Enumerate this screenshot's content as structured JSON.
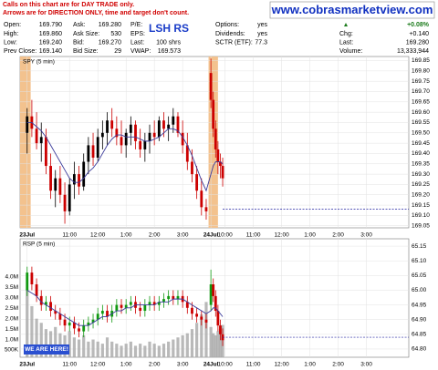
{
  "header": {
    "notes": [
      "Calls on this chart are for DAY TRADE only.",
      "Arrows are for DIRECTION ONLY, time and target don't count."
    ],
    "site": "www.cobrasmarketview.com",
    "symbol": "LSH RS",
    "quote": [
      [
        {
          "label": "Open:",
          "value": "169.790"
        },
        {
          "label": "High:",
          "value": "169.860"
        },
        {
          "label": "Low:",
          "value": "169.240"
        },
        {
          "label": "Prev Close:",
          "value": "169.140"
        }
      ],
      [
        {
          "label": "Ask:",
          "value": "169.280"
        },
        {
          "label": "Ask Size:",
          "value": "530"
        },
        {
          "label": "Bid:",
          "value": "169.270"
        },
        {
          "label": "Bid Size:",
          "value": "29"
        }
      ],
      [
        {
          "label": "P/E:"
        },
        {
          "label": "EPS:"
        },
        {
          "label": "Last:",
          "value": "100 shrs"
        },
        {
          "label": "VWAP:",
          "value": "169.573"
        }
      ],
      [
        {
          "label": "Options:",
          "value": "yes"
        },
        {
          "label": "Dividends:",
          "value": "yes"
        },
        {
          "label": "SCTR (ETF):",
          "value": "77.3"
        }
      ],
      [
        {
          "value": "+0.08%"
        },
        {
          "label": "Chg:",
          "value": "+0.140"
        },
        {
          "label": "Last:",
          "value": "169.280"
        },
        {
          "label": "Volume:",
          "value": "13,333,944"
        }
      ]
    ]
  },
  "chart_data": [
    {
      "type": "candlestick",
      "title": "SPY (5 min)",
      "up_color": "#000000",
      "down_color": "#cc0000",
      "x": [
        0,
        2,
        4,
        6,
        8,
        10,
        12,
        14,
        16,
        18,
        20,
        22,
        24,
        26,
        28,
        30,
        32,
        34,
        36,
        38,
        40,
        42,
        44,
        46,
        48,
        50,
        52,
        54,
        56,
        58,
        60,
        62,
        64,
        66,
        68,
        70,
        72,
        74,
        76,
        78,
        79,
        80,
        81,
        82,
        83
      ],
      "open": [
        169.5,
        169.58,
        169.52,
        169.45,
        169.48,
        169.34,
        169.22,
        169.28,
        169.2,
        169.12,
        169.25,
        169.3,
        169.24,
        169.36,
        169.44,
        169.38,
        169.48,
        169.5,
        169.56,
        169.52,
        169.48,
        169.44,
        169.5,
        169.54,
        169.46,
        169.42,
        169.46,
        169.5,
        169.48,
        169.56,
        169.52,
        169.54,
        169.58,
        169.5,
        169.44,
        169.36,
        169.3,
        169.22,
        169.14,
        169.79,
        169.66,
        169.52,
        169.42,
        169.36,
        169.34
      ],
      "high": [
        169.62,
        169.66,
        169.6,
        169.55,
        169.52,
        169.4,
        169.32,
        169.34,
        169.26,
        169.28,
        169.36,
        169.34,
        169.4,
        169.48,
        169.5,
        169.52,
        169.56,
        169.6,
        169.62,
        169.58,
        169.56,
        169.52,
        169.58,
        169.56,
        169.52,
        169.5,
        169.54,
        169.56,
        169.58,
        169.6,
        169.58,
        169.62,
        169.6,
        169.56,
        169.5,
        169.42,
        169.34,
        169.28,
        169.18,
        169.86,
        169.7,
        169.56,
        169.46,
        169.4,
        169.38
      ],
      "low": [
        169.4,
        169.48,
        169.42,
        169.36,
        169.3,
        169.18,
        169.14,
        169.16,
        169.06,
        169.1,
        169.18,
        169.2,
        169.22,
        169.3,
        169.34,
        169.36,
        169.42,
        169.44,
        169.48,
        169.44,
        169.4,
        169.38,
        169.44,
        169.42,
        169.38,
        169.36,
        169.4,
        169.44,
        169.46,
        169.48,
        169.46,
        169.5,
        169.48,
        169.4,
        169.32,
        169.26,
        169.18,
        169.1,
        169.08,
        169.62,
        169.48,
        169.38,
        169.3,
        169.28,
        169.24
      ],
      "close": [
        169.58,
        169.52,
        169.45,
        169.48,
        169.34,
        169.22,
        169.28,
        169.2,
        169.12,
        169.25,
        169.3,
        169.24,
        169.36,
        169.44,
        169.38,
        169.48,
        169.5,
        169.56,
        169.52,
        169.48,
        169.44,
        169.5,
        169.54,
        169.46,
        169.42,
        169.46,
        169.5,
        169.48,
        169.56,
        169.52,
        169.54,
        169.58,
        169.5,
        169.44,
        169.36,
        169.3,
        169.22,
        169.14,
        169.12,
        169.66,
        169.52,
        169.42,
        169.36,
        169.34,
        169.28
      ],
      "ma": {
        "color": "#3a3a9a",
        "values": [
          169.55,
          169.55,
          169.53,
          169.51,
          169.48,
          169.44,
          169.4,
          169.36,
          169.32,
          169.28,
          169.26,
          169.26,
          169.28,
          169.31,
          169.33,
          169.36,
          169.4,
          169.44,
          169.47,
          169.49,
          169.49,
          169.48,
          169.48,
          169.48,
          169.47,
          169.46,
          169.46,
          169.47,
          169.48,
          169.5,
          169.52,
          169.52,
          169.51,
          169.48,
          169.44,
          169.39,
          169.33,
          169.27,
          169.22,
          169.3,
          169.34,
          169.36,
          169.36,
          169.36,
          169.35
        ]
      },
      "price_line": 169.13,
      "price_line_color": "#2020a0",
      "highlights": [
        [
          -3,
          1.5
        ],
        [
          77,
          81
        ]
      ],
      "highlight_color": "#f3c28e",
      "xlim": [
        -3,
        162
      ],
      "ylim": [
        169.04,
        169.87
      ],
      "xticks": [
        {
          "value": 0,
          "label": "23Jul"
        },
        {
          "value": 18,
          "label": "11:00"
        },
        {
          "value": 30,
          "label": "12:00"
        },
        {
          "value": 42,
          "label": "1:00"
        },
        {
          "value": 54,
          "label": "2:00"
        },
        {
          "value": 66,
          "label": "3:00"
        },
        {
          "value": 78,
          "label": "24Jul"
        },
        {
          "value": 84,
          "label": "10:00"
        },
        {
          "value": 96,
          "label": "11:00"
        },
        {
          "value": 108,
          "label": "12:00"
        },
        {
          "value": 120,
          "label": "1:00"
        },
        {
          "value": 132,
          "label": "2:00"
        },
        {
          "value": 144,
          "label": "3:00"
        }
      ],
      "yticks": [
        169.05,
        {
          "value": 169.1,
          "label": "169.10"
        },
        169.15,
        {
          "value": 169.2,
          "label": "169.20"
        },
        169.25,
        {
          "value": 169.3,
          "label": "169.30"
        },
        169.35,
        {
          "value": 169.4,
          "label": "169.40"
        },
        169.45,
        {
          "value": 169.5,
          "label": "169.50"
        },
        169.55,
        {
          "value": 169.6,
          "label": "169.60"
        },
        169.65,
        {
          "value": 169.7,
          "label": "169.70"
        },
        169.75,
        {
          "value": 169.8,
          "label": "169.80"
        },
        169.85
      ],
      "grid": true
    },
    {
      "type": "candlestick",
      "title": "RSP (5 min)",
      "up_color": "#119911",
      "down_color": "#cc0000",
      "x": [
        0,
        2,
        4,
        6,
        8,
        10,
        12,
        14,
        16,
        18,
        20,
        22,
        24,
        26,
        28,
        30,
        32,
        34,
        36,
        38,
        40,
        42,
        44,
        46,
        48,
        50,
        52,
        54,
        56,
        58,
        60,
        62,
        64,
        66,
        68,
        70,
        72,
        74,
        76,
        78,
        79,
        80,
        81,
        82,
        83
      ],
      "open": [
        65.0,
        65.06,
        65.02,
        64.98,
        64.95,
        64.96,
        64.93,
        64.92,
        64.9,
        64.88,
        64.89,
        64.87,
        64.86,
        64.88,
        64.89,
        64.9,
        64.92,
        64.93,
        64.91,
        64.93,
        64.95,
        64.94,
        64.95,
        64.96,
        64.94,
        64.93,
        64.95,
        64.96,
        64.95,
        64.96,
        64.97,
        64.98,
        64.97,
        64.98,
        64.96,
        64.94,
        64.92,
        64.91,
        64.9,
        64.95,
        65.02,
        64.98,
        64.93,
        64.88,
        64.85
      ],
      "high": [
        65.08,
        65.08,
        65.04,
        65.0,
        64.98,
        64.98,
        64.95,
        64.94,
        64.92,
        64.91,
        64.91,
        64.89,
        64.9,
        64.91,
        64.92,
        64.94,
        64.95,
        64.95,
        64.95,
        64.97,
        64.97,
        64.97,
        64.98,
        64.98,
        64.96,
        64.97,
        64.98,
        64.98,
        64.98,
        64.99,
        65.0,
        65.0,
        65.0,
        65.0,
        64.98,
        64.96,
        64.94,
        64.93,
        64.92,
        65.07,
        65.04,
        65.0,
        64.95,
        64.9,
        64.87
      ],
      "low": [
        64.98,
        65.0,
        64.96,
        64.93,
        64.93,
        64.91,
        64.9,
        64.88,
        64.86,
        64.86,
        64.85,
        64.84,
        64.84,
        64.86,
        64.87,
        64.88,
        64.9,
        64.89,
        64.89,
        64.91,
        64.92,
        64.92,
        64.93,
        64.92,
        64.91,
        64.91,
        64.93,
        64.93,
        64.93,
        64.94,
        64.95,
        64.95,
        64.95,
        64.94,
        64.92,
        64.9,
        64.89,
        64.88,
        64.87,
        64.93,
        64.96,
        64.91,
        64.86,
        64.83,
        64.81
      ],
      "close": [
        65.06,
        65.02,
        64.98,
        64.95,
        64.96,
        64.93,
        64.92,
        64.9,
        64.88,
        64.89,
        64.87,
        64.86,
        64.88,
        64.89,
        64.9,
        64.92,
        64.93,
        64.91,
        64.93,
        64.95,
        64.94,
        64.95,
        64.96,
        64.94,
        64.93,
        64.95,
        64.96,
        64.95,
        64.96,
        64.97,
        64.98,
        64.97,
        64.98,
        64.96,
        64.94,
        64.92,
        64.91,
        64.9,
        64.89,
        65.02,
        64.98,
        64.93,
        64.88,
        64.85,
        64.83
      ],
      "ma": {
        "color": "#3a3a9a",
        "values": [
          65.0,
          64.99,
          64.98,
          64.96,
          64.95,
          64.94,
          64.93,
          64.92,
          64.91,
          64.9,
          64.89,
          64.88,
          64.88,
          64.88,
          64.89,
          64.9,
          64.91,
          64.91,
          64.92,
          64.93,
          64.93,
          64.94,
          64.94,
          64.95,
          64.95,
          64.95,
          64.95,
          64.95,
          64.96,
          64.96,
          64.96,
          64.97,
          64.97,
          64.97,
          64.96,
          64.95,
          64.94,
          64.93,
          64.92,
          64.93,
          64.94,
          64.94,
          64.93,
          64.92,
          64.91
        ]
      },
      "volume": {
        "axis": "y2",
        "color": "#a8a8a8",
        "values": [
          3400000,
          2600000,
          2000000,
          1800000,
          1500000,
          1400000,
          1600000,
          1300000,
          1200000,
          1400000,
          1100000,
          1000000,
          1200000,
          900000,
          1000000,
          900000,
          800000,
          1100000,
          900000,
          800000,
          700000,
          800000,
          900000,
          700000,
          800000,
          700000,
          900000,
          800000,
          700000,
          800000,
          900000,
          1000000,
          1100000,
          1200000,
          1300000,
          1500000,
          1800000,
          2200000,
          2800000,
          1600000,
          1300000,
          1200000,
          1400000,
          1500000,
          1700000
        ]
      },
      "price_line": 64.84,
      "price_line_color": "#2020a0",
      "annotation": "WE ARE HERE!",
      "xlim": [
        -3,
        162
      ],
      "ylim": [
        64.772,
        65.175
      ],
      "y2lim": [
        150000,
        5830000
      ],
      "xticks": [
        {
          "value": 0,
          "label": "23Jul"
        },
        {
          "value": 18,
          "label": "11:00"
        },
        {
          "value": 30,
          "label": "12:00"
        },
        {
          "value": 42,
          "label": "1:00"
        },
        {
          "value": 54,
          "label": "2:00"
        },
        {
          "value": 66,
          "label": "3:00"
        },
        {
          "value": 78,
          "label": "24Jul"
        },
        {
          "value": 84,
          "label": "10:00"
        },
        {
          "value": 96,
          "label": "11:00"
        },
        {
          "value": 108,
          "label": "12:00"
        },
        {
          "value": 120,
          "label": "1:00"
        },
        {
          "value": 132,
          "label": "2:00"
        },
        {
          "value": 144,
          "label": "3:00"
        }
      ],
      "yticks": [
        {
          "value": 64.8,
          "label": "64.80"
        },
        64.85,
        {
          "value": 64.9,
          "label": "64.90"
        },
        64.95,
        {
          "value": 65,
          "label": "65.00"
        },
        65.05,
        {
          "value": 65.1,
          "label": "65.10"
        },
        65.15
      ],
      "y2ticks": [
        {
          "value": 500000,
          "label": "500K"
        },
        {
          "value": 1000000,
          "label": "1.0M"
        },
        {
          "value": 1500000,
          "label": "1.5M"
        },
        {
          "value": 2000000,
          "label": "2.0M"
        },
        {
          "value": 2500000,
          "label": "2.5M"
        },
        {
          "value": 3000000,
          "label": "3.0M"
        },
        {
          "value": 3500000,
          "label": "3.5M"
        },
        {
          "value": 4000000,
          "label": "4.0M"
        }
      ],
      "grid": true
    }
  ]
}
